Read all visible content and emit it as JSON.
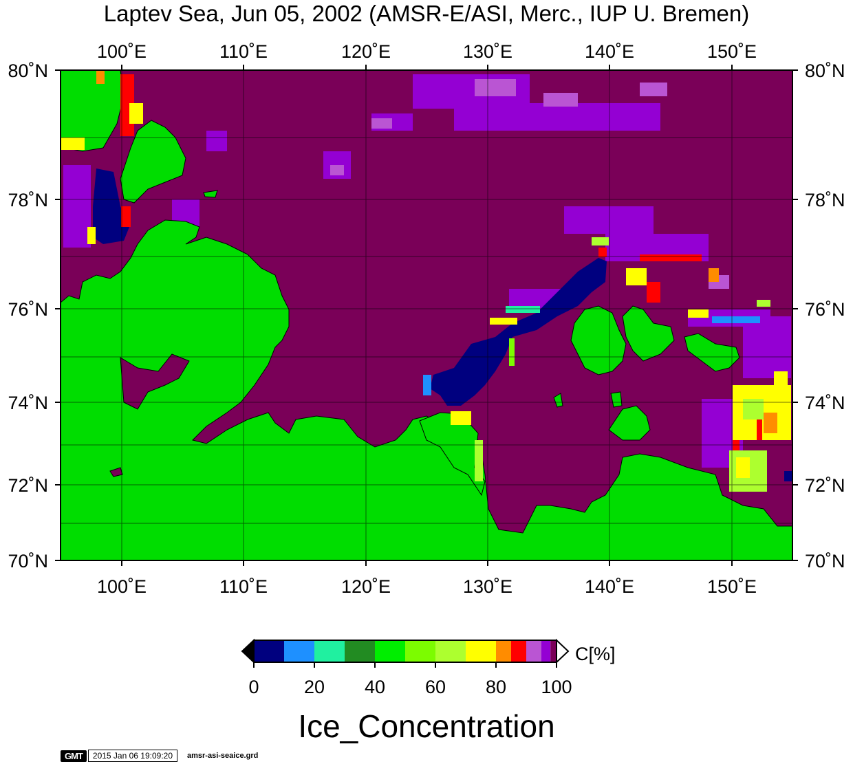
{
  "title": "Laptev Sea, Jun 05, 2002 (AMSR-E/ASI, Merc., IUP U. Bremen)",
  "variable_title": "Ice_Concentration",
  "footer": {
    "logo": "GMT",
    "timestamp": "2015 Jan 06 19:09:20",
    "filename": "amsr-asi-seaice.grd"
  },
  "map": {
    "lon_range": [
      95,
      155
    ],
    "lat_range": [
      70,
      80
    ],
    "projection": "Mercator",
    "lon_ticks": [
      "100˚E",
      "110˚E",
      "120˚E",
      "130˚E",
      "140˚E",
      "150˚E"
    ],
    "lat_ticks": [
      "70˚N",
      "72˚N",
      "74˚N",
      "76˚N",
      "78˚N",
      "80˚N"
    ],
    "colors": {
      "land": "#00dd00",
      "open_water_high_conc": "#7a0058",
      "coast_line": "#000000"
    }
  },
  "colorbar": {
    "label": "C[%]",
    "ticks": [
      "0",
      "20",
      "40",
      "60",
      "80",
      "100"
    ],
    "range": [
      0,
      100
    ],
    "segments": [
      {
        "from": 0,
        "to": 10,
        "color": "#00007f"
      },
      {
        "from": 10,
        "to": 20,
        "color": "#1e90ff"
      },
      {
        "from": 20,
        "to": 30,
        "color": "#20f0a0"
      },
      {
        "from": 30,
        "to": 40,
        "color": "#228b22"
      },
      {
        "from": 40,
        "to": 50,
        "color": "#00ee00"
      },
      {
        "from": 50,
        "to": 60,
        "color": "#7cfc00"
      },
      {
        "from": 60,
        "to": 70,
        "color": "#adff2f"
      },
      {
        "from": 70,
        "to": 80,
        "color": "#ffff00"
      },
      {
        "from": 80,
        "to": 85,
        "color": "#ff8c00"
      },
      {
        "from": 85,
        "to": 90,
        "color": "#ff0000"
      },
      {
        "from": 90,
        "to": 95,
        "color": "#ba55d3"
      },
      {
        "from": 95,
        "to": 98,
        "color": "#9400d3"
      },
      {
        "from": 98,
        "to": 100,
        "color": "#7a0058"
      }
    ],
    "below_color": "#000000",
    "above_color": "#ffffff"
  }
}
